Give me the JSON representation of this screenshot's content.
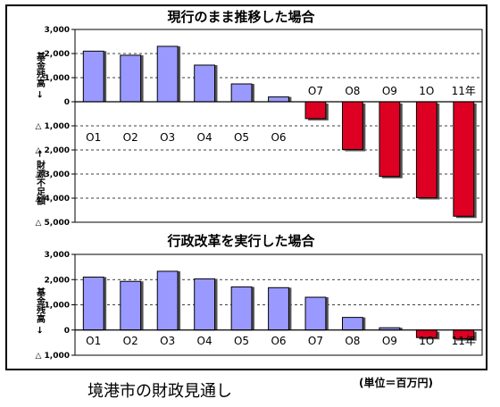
{
  "footer": {
    "title": "境港市の財政見通し",
    "unit_note": "(単位＝百万円)"
  },
  "colors": {
    "positive_bar": "#9999ff",
    "negative_bar": "#dd0022"
  },
  "chart_data": [
    {
      "type": "bar",
      "title": "現行のまま推移した場合",
      "ylabel_positive": "基金残高 →",
      "ylabel_negative": "← 財源不足額",
      "categories": [
        "O1",
        "O2",
        "O3",
        "O4",
        "O5",
        "O6",
        "O7",
        "O8",
        "O9",
        "1O",
        "11年"
      ],
      "values": [
        2100,
        1930,
        2300,
        1520,
        740,
        200,
        -700,
        -1980,
        -3100,
        -3980,
        -4750
      ],
      "ylim": [
        -5000,
        3000
      ],
      "yticks": [
        3000,
        2000,
        1000,
        0,
        -1000,
        -2000,
        -3000,
        -4000,
        -5000
      ],
      "ytick_labels": [
        "3,000",
        "2,000",
        "1,000",
        "0",
        "△ 1,000",
        "△ 2,000",
        "△ 3,000",
        "△ 4,000",
        "△ 5,000"
      ],
      "grid": true
    },
    {
      "type": "bar",
      "title": "行政改革を実行した場合",
      "ylabel_positive": "基金残高 →",
      "categories": [
        "O1",
        "O2",
        "O3",
        "O4",
        "O5",
        "O6",
        "O7",
        "O8",
        "O9",
        "1O",
        "11年"
      ],
      "values": [
        2100,
        1930,
        2330,
        2030,
        1710,
        1680,
        1300,
        500,
        90,
        -300,
        -350
      ],
      "ylim": [
        -1000,
        3000
      ],
      "yticks": [
        3000,
        2000,
        1000,
        0,
        -1000
      ],
      "ytick_labels": [
        "3,000",
        "2,000",
        "1,000",
        "0",
        "△ 1,000"
      ],
      "grid": true
    }
  ]
}
